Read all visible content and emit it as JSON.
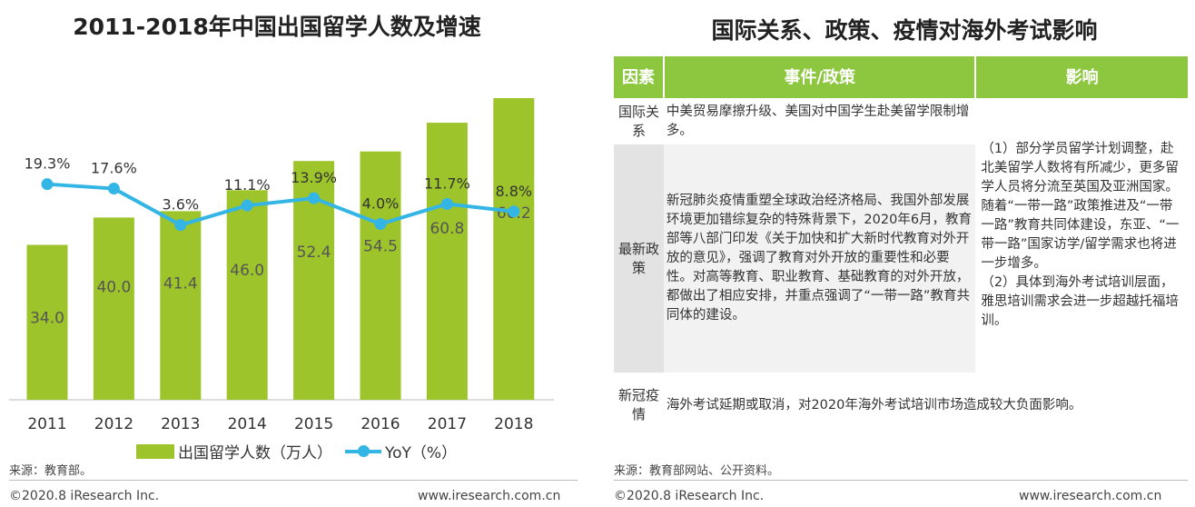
{
  "left": {
    "title": "2011-2018年中国出国留学人数及增速",
    "source": "来源：教育部。",
    "copyright": "©2020.8 iResearch Inc.",
    "website": "www.iresearch.com.cn"
  },
  "right": {
    "title": "国际关系、政策、疫情对海外考试影响",
    "headers": [
      "因素",
      "事件/政策",
      "影响"
    ],
    "rows": [
      {
        "factor": "国际关系",
        "event": "中美贸易摩擦升级、美国对中国学生赴美留学限制增多。"
      },
      {
        "factor": "最新政策",
        "event": "新冠肺炎疫情重塑全球政治经济格局、我国外部发展环境更加错综复杂的特殊背景下，2020年6月，教育部等八部门印发《关于加快和扩大新时代教育对外开放的意见》，强调了教育对外开放的重要性和必要性。对高等教育、职业教育、基础教育的对外开放，都做出了相应安排，并重点强调了“一带一路”教育共同体的建设。"
      },
      {
        "factor": "新冠疫情",
        "event": "海外考试延期或取消，对2020年海外考试培训市场造成较大负面影响。"
      }
    ],
    "impact_1": "（1）部分学员留学计划调整，赴北美留学人数将有所减少，更多留学人员将分流至英国及亚洲国家。随着“一带一路”政策推进及“一带一路”教育共同体建设，东亚、“一带一路”国家访学/留学需求也将进一步增多。",
    "impact_2": "（2）具体到海外考试培训层面，雅思培训需求会进一步超越托福培训。",
    "source": "来源：教育部网站、公开资料。",
    "copyright": "©2020.8 iResearch Inc.",
    "website": "www.iresearch.com.cn",
    "header_color": "#8dc63f"
  },
  "chart_data": {
    "type": "bar+line",
    "title": "2011-2018年中国出国留学人数及增速",
    "categories": [
      "2011",
      "2012",
      "2013",
      "2014",
      "2015",
      "2016",
      "2017",
      "2018"
    ],
    "series": [
      {
        "name": "出国留学人数（万人）",
        "type": "bar",
        "color": "#9dc42a",
        "values": [
          34.0,
          40.0,
          41.4,
          46.0,
          52.4,
          54.5,
          60.8,
          66.2
        ],
        "labels": [
          "34.0",
          "40.0",
          "41.4",
          "46.0",
          "52.4",
          "54.5",
          "60.8",
          "66.2"
        ]
      },
      {
        "name": "YoY（%）",
        "type": "line",
        "color": "#33b5e5",
        "values": [
          19.3,
          17.6,
          3.6,
          11.1,
          13.9,
          4.0,
          11.7,
          8.8
        ],
        "labels": [
          "19.3%",
          "17.6%",
          "3.6%",
          "11.1%",
          "13.9%",
          "4.0%",
          "11.7%",
          "8.8%"
        ]
      }
    ],
    "legend": "bottom",
    "grid": false
  }
}
